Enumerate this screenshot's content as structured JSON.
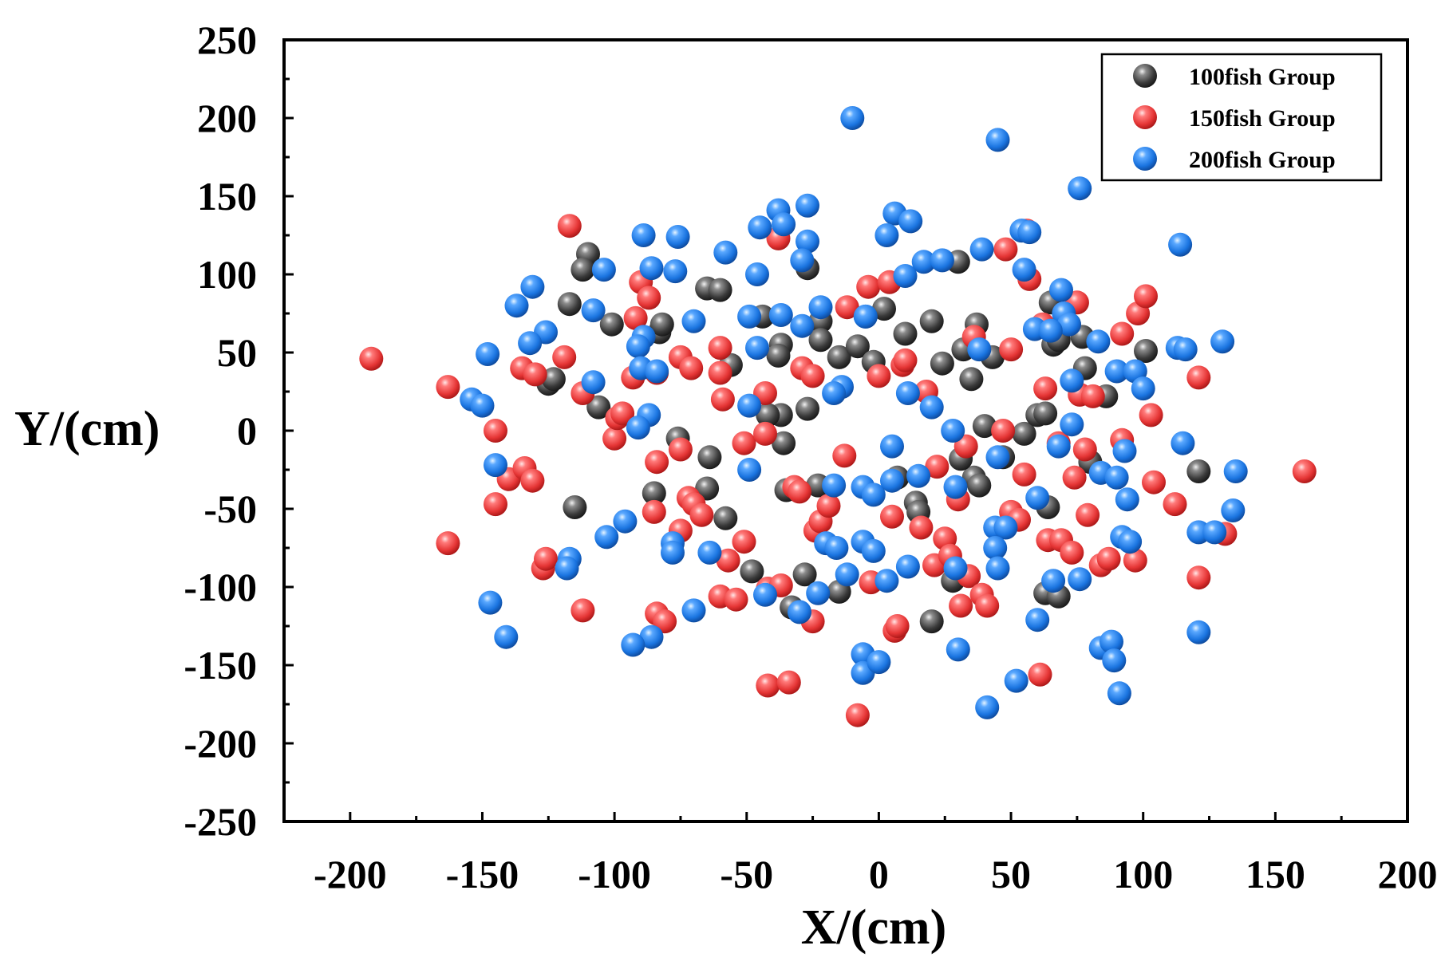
{
  "chart_data": {
    "type": "scatter",
    "title": "",
    "xlabel": "X/(cm)",
    "ylabel": "Y/(cm)",
    "xlim": [
      -225,
      200
    ],
    "ylim": [
      -250,
      250
    ],
    "xticks": [
      -200,
      -150,
      -100,
      -50,
      0,
      50,
      100,
      150,
      200
    ],
    "yticks": [
      -250,
      -200,
      -150,
      -100,
      -50,
      0,
      50,
      100,
      150,
      200,
      250
    ],
    "grid": false,
    "legend_position": "top-right",
    "series": [
      {
        "name": "100fish Group",
        "color": "#3a3a3a",
        "points": [
          [
            -110,
            113
          ],
          [
            -112,
            103
          ],
          [
            -117,
            81
          ],
          [
            -125,
            30
          ],
          [
            -123,
            33
          ],
          [
            -106,
            15
          ],
          [
            -101,
            68
          ],
          [
            -83,
            63
          ],
          [
            -82,
            68
          ],
          [
            -76,
            -5
          ],
          [
            -85,
            -40
          ],
          [
            -115,
            -49
          ],
          [
            -65,
            91
          ],
          [
            -60,
            90
          ],
          [
            -56,
            42
          ],
          [
            -64,
            -17
          ],
          [
            -65,
            -37
          ],
          [
            -58,
            -56
          ],
          [
            -48,
            -90
          ],
          [
            -44,
            73
          ],
          [
            -37,
            55
          ],
          [
            -38,
            48
          ],
          [
            -37,
            10
          ],
          [
            -42,
            10
          ],
          [
            -36,
            -8
          ],
          [
            -35,
            -38
          ],
          [
            -33,
            -113
          ],
          [
            -28,
            -92
          ],
          [
            -27,
            104
          ],
          [
            -27,
            14
          ],
          [
            -22,
            70
          ],
          [
            -22,
            58
          ],
          [
            -23,
            -35
          ],
          [
            -15,
            -103
          ],
          [
            -15,
            47
          ],
          [
            -8,
            54
          ],
          [
            -2,
            44
          ],
          [
            2,
            78
          ],
          [
            7,
            -30
          ],
          [
            10,
            62
          ],
          [
            14,
            -46
          ],
          [
            15,
            -52
          ],
          [
            20,
            -122
          ],
          [
            20,
            70
          ],
          [
            24,
            43
          ],
          [
            30,
            108
          ],
          [
            32,
            52
          ],
          [
            35,
            33
          ],
          [
            36,
            -30
          ],
          [
            37,
            68
          ],
          [
            38,
            -35
          ],
          [
            40,
            3
          ],
          [
            31,
            -18
          ],
          [
            43,
            47
          ],
          [
            28,
            -96
          ],
          [
            47,
            -17
          ],
          [
            55,
            -2
          ],
          [
            60,
            10
          ],
          [
            63,
            11
          ],
          [
            65,
            82
          ],
          [
            66,
            55
          ],
          [
            64,
            -49
          ],
          [
            63,
            -104
          ],
          [
            68,
            -106
          ],
          [
            68,
            58
          ],
          [
            72,
            68
          ],
          [
            77,
            60
          ],
          [
            78,
            40
          ],
          [
            80,
            -20
          ],
          [
            86,
            22
          ],
          [
            101,
            51
          ],
          [
            121,
            -26
          ]
        ]
      },
      {
        "name": "150fish Group",
        "color": "#e53535",
        "points": [
          [
            -192,
            46
          ],
          [
            -163,
            28
          ],
          [
            -163,
            -72
          ],
          [
            -145,
            0
          ],
          [
            -145,
            -47
          ],
          [
            -140,
            -31
          ],
          [
            -135,
            40
          ],
          [
            -134,
            -24
          ],
          [
            -130,
            36
          ],
          [
            -131,
            -32
          ],
          [
            -127,
            -88
          ],
          [
            -126,
            -82
          ],
          [
            -117,
            131
          ],
          [
            -119,
            47
          ],
          [
            -112,
            24
          ],
          [
            -112,
            -115
          ],
          [
            -100,
            -5
          ],
          [
            -99,
            8
          ],
          [
            -97,
            11
          ],
          [
            -93,
            34
          ],
          [
            -90,
            95
          ],
          [
            -92,
            72
          ],
          [
            -87,
            85
          ],
          [
            -84,
            37
          ],
          [
            -84,
            -20
          ],
          [
            -85,
            -52
          ],
          [
            -84,
            -117
          ],
          [
            -81,
            -122
          ],
          [
            -75,
            -12
          ],
          [
            -75,
            47
          ],
          [
            -75,
            -64
          ],
          [
            -71,
            40
          ],
          [
            -72,
            -43
          ],
          [
            -70,
            -47
          ],
          [
            -67,
            -54
          ],
          [
            -60,
            53
          ],
          [
            -60,
            37
          ],
          [
            -60,
            -106
          ],
          [
            -59,
            20
          ],
          [
            -57,
            -83
          ],
          [
            -54,
            -108
          ],
          [
            -51,
            -8
          ],
          [
            -51,
            -71
          ],
          [
            -43,
            24
          ],
          [
            -43,
            -2
          ],
          [
            -42,
            -101
          ],
          [
            -42,
            -163
          ],
          [
            -38,
            123
          ],
          [
            -37,
            -99
          ],
          [
            -34,
            -161
          ],
          [
            -32,
            -36
          ],
          [
            -30,
            -39
          ],
          [
            -29,
            40
          ],
          [
            -25,
            35
          ],
          [
            -25,
            -122
          ],
          [
            -24,
            -64
          ],
          [
            -22,
            -58
          ],
          [
            -19,
            -48
          ],
          [
            -12,
            79
          ],
          [
            -13,
            -16
          ],
          [
            -8,
            -182
          ],
          [
            -4,
            92
          ],
          [
            -3,
            -97
          ],
          [
            0,
            35
          ],
          [
            4,
            95
          ],
          [
            5,
            -55
          ],
          [
            6,
            -128
          ],
          [
            7,
            -125
          ],
          [
            9,
            42
          ],
          [
            10,
            45
          ],
          [
            16,
            -62
          ],
          [
            18,
            25
          ],
          [
            21,
            -86
          ],
          [
            22,
            -23
          ],
          [
            25,
            -69
          ],
          [
            27,
            -80
          ],
          [
            30,
            -44
          ],
          [
            31,
            -112
          ],
          [
            33,
            -10
          ],
          [
            34,
            -93
          ],
          [
            36,
            60
          ],
          [
            39,
            -105
          ],
          [
            41,
            -112
          ],
          [
            47,
            0
          ],
          [
            48,
            116
          ],
          [
            50,
            52
          ],
          [
            50,
            -52
          ],
          [
            53,
            -57
          ],
          [
            55,
            -28
          ],
          [
            56,
            128
          ],
          [
            57,
            97
          ],
          [
            61,
            -156
          ],
          [
            62,
            68
          ],
          [
            63,
            27
          ],
          [
            64,
            -70
          ],
          [
            68,
            -8
          ],
          [
            69,
            -70
          ],
          [
            73,
            -78
          ],
          [
            74,
            -30
          ],
          [
            75,
            82
          ],
          [
            76,
            23
          ],
          [
            78,
            -12
          ],
          [
            79,
            -54
          ],
          [
            81,
            22
          ],
          [
            84,
            -86
          ],
          [
            87,
            -82
          ],
          [
            92,
            62
          ],
          [
            92,
            -6
          ],
          [
            97,
            -83
          ],
          [
            98,
            75
          ],
          [
            101,
            86
          ],
          [
            103,
            10
          ],
          [
            104,
            -33
          ],
          [
            112,
            -47
          ],
          [
            121,
            34
          ],
          [
            121,
            -94
          ],
          [
            131,
            -66
          ],
          [
            161,
            -26
          ]
        ]
      },
      {
        "name": "200fish Group",
        "color": "#1a74e0",
        "points": [
          [
            -10,
            200
          ],
          [
            45,
            186
          ],
          [
            76,
            155
          ],
          [
            114,
            119
          ],
          [
            -38,
            141
          ],
          [
            -27,
            144
          ],
          [
            -36,
            132
          ],
          [
            -45,
            130
          ],
          [
            -27,
            121
          ],
          [
            -58,
            114
          ],
          [
            -89,
            125
          ],
          [
            -76,
            124
          ],
          [
            -29,
            109
          ],
          [
            6,
            139
          ],
          [
            12,
            134
          ],
          [
            3,
            125
          ],
          [
            10,
            99
          ],
          [
            17,
            108
          ],
          [
            24,
            109
          ],
          [
            39,
            116
          ],
          [
            54,
            128
          ],
          [
            57,
            127
          ],
          [
            55,
            103
          ],
          [
            -104,
            103
          ],
          [
            -86,
            104
          ],
          [
            -77,
            102
          ],
          [
            -46,
            100
          ],
          [
            -131,
            92
          ],
          [
            -137,
            80
          ],
          [
            -108,
            77
          ],
          [
            -22,
            79
          ],
          [
            -29,
            67
          ],
          [
            -37,
            74
          ],
          [
            -49,
            73
          ],
          [
            -70,
            70
          ],
          [
            -89,
            60
          ],
          [
            -91,
            54
          ],
          [
            -126,
            63
          ],
          [
            -132,
            56
          ],
          [
            -148,
            49
          ],
          [
            -46,
            53
          ],
          [
            -5,
            73
          ],
          [
            69,
            90
          ],
          [
            70,
            75
          ],
          [
            72,
            68
          ],
          [
            59,
            65
          ],
          [
            65,
            64
          ],
          [
            83,
            57
          ],
          [
            38,
            52
          ],
          [
            113,
            53
          ],
          [
            116,
            52
          ],
          [
            130,
            57
          ],
          [
            -108,
            31
          ],
          [
            -90,
            40
          ],
          [
            -84,
            38
          ],
          [
            -87,
            10
          ],
          [
            -91,
            2
          ],
          [
            -154,
            20
          ],
          [
            -150,
            16
          ],
          [
            -145,
            -22
          ],
          [
            -49,
            16
          ],
          [
            -14,
            28
          ],
          [
            -17,
            24
          ],
          [
            11,
            24
          ],
          [
            20,
            15
          ],
          [
            73,
            32
          ],
          [
            90,
            38
          ],
          [
            97,
            38
          ],
          [
            100,
            27
          ],
          [
            73,
            4
          ],
          [
            -5,
            73
          ],
          [
            -49,
            -25
          ],
          [
            -17,
            -35
          ],
          [
            -6,
            -36
          ],
          [
            -2,
            -41
          ],
          [
            5,
            -10
          ],
          [
            5,
            -32
          ],
          [
            15,
            -29
          ],
          [
            28,
            0
          ],
          [
            29,
            -36
          ],
          [
            45,
            -17
          ],
          [
            60,
            -43
          ],
          [
            68,
            -10
          ],
          [
            84,
            -27
          ],
          [
            90,
            -30
          ],
          [
            93,
            -13
          ],
          [
            94,
            -44
          ],
          [
            115,
            -8
          ],
          [
            135,
            -26
          ],
          [
            134,
            -51
          ],
          [
            121,
            -65
          ],
          [
            127,
            -65
          ],
          [
            -96,
            -58
          ],
          [
            -103,
            -68
          ],
          [
            -117,
            -82
          ],
          [
            -118,
            -88
          ],
          [
            -78,
            -72
          ],
          [
            -78,
            -78
          ],
          [
            -64,
            -78
          ],
          [
            -70,
            -115
          ],
          [
            -43,
            -105
          ],
          [
            -23,
            -104
          ],
          [
            -30,
            -116
          ],
          [
            -20,
            -72
          ],
          [
            -16,
            -75
          ],
          [
            -12,
            -92
          ],
          [
            -6,
            -71
          ],
          [
            -2,
            -77
          ],
          [
            3,
            -96
          ],
          [
            11,
            -87
          ],
          [
            29,
            -88
          ],
          [
            30,
            -140
          ],
          [
            44,
            -62
          ],
          [
            48,
            -62
          ],
          [
            44,
            -75
          ],
          [
            45,
            -88
          ],
          [
            52,
            -160
          ],
          [
            60,
            -121
          ],
          [
            66,
            -96
          ],
          [
            76,
            -95
          ],
          [
            84,
            -139
          ],
          [
            88,
            -135
          ],
          [
            89,
            -147
          ],
          [
            91,
            -168
          ],
          [
            92,
            -68
          ],
          [
            95,
            -71
          ],
          [
            121,
            -129
          ],
          [
            -86,
            -132
          ],
          [
            -93,
            -137
          ],
          [
            -147,
            -110
          ],
          [
            -141,
            -132
          ],
          [
            -6,
            -143
          ],
          [
            -6,
            -155
          ],
          [
            0,
            -148
          ],
          [
            41,
            -177
          ]
        ]
      }
    ]
  }
}
